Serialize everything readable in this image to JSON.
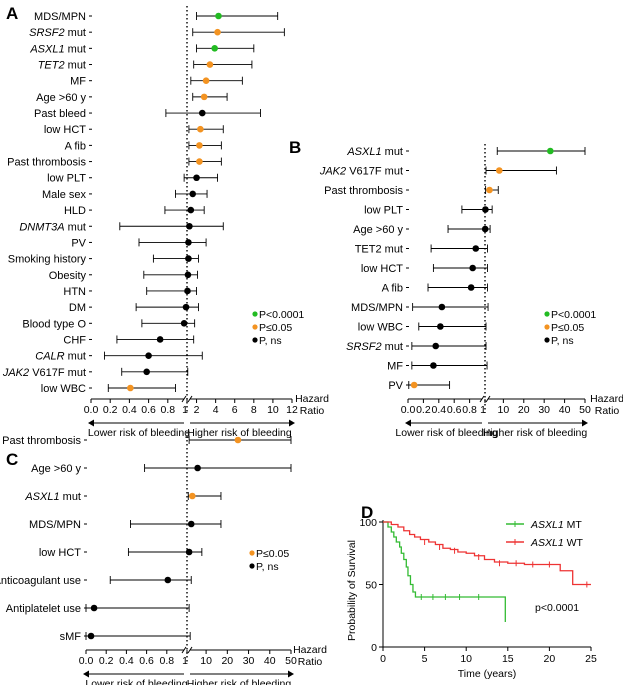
{
  "colors": {
    "p_very_sig": "#22bb22",
    "p_sig": "#f39321",
    "p_ns": "#000000",
    "mt_line": "#33bb33",
    "wt_line": "#ee3333"
  },
  "chart_data": [
    {
      "panel": "A",
      "type": "forest",
      "break_value": 1,
      "left_ticks": [
        "0.0",
        "0.2",
        "0.4",
        "0.6",
        "0.8",
        "1"
      ],
      "right_ticks": [
        "2",
        "4",
        "6",
        "8",
        "10",
        "12"
      ],
      "right_range": [
        1,
        12
      ],
      "axis_label": "Hazard Ratio",
      "axis_label_lines": [
        "Hazard",
        "Ratio"
      ],
      "lower_label": "Lower risk of bleeding",
      "higher_label": "Higher risk of bleeding",
      "legend": [
        "P<0.0001",
        "P≤0.05",
        "P, ns"
      ],
      "rows": [
        {
          "label": "MDS/MPN",
          "italic": false,
          "sig": 2,
          "est": 4.3,
          "lo": 2.0,
          "hi": 10.5
        },
        {
          "label": "SRSF2 mut",
          "italic": true,
          "sig": 1,
          "est": 4.2,
          "lo": 1.6,
          "hi": 11.2
        },
        {
          "label": "ASXL1 mut",
          "italic": true,
          "sig": 2,
          "est": 3.9,
          "lo": 2.0,
          "hi": 8.0
        },
        {
          "label": "TET2 mut",
          "italic": true,
          "sig": 1,
          "est": 3.4,
          "lo": 1.7,
          "hi": 7.8
        },
        {
          "label": "MF",
          "italic": false,
          "sig": 1,
          "est": 3.0,
          "lo": 1.4,
          "hi": 6.8
        },
        {
          "label": "Age >60 y",
          "italic": false,
          "sig": 1,
          "est": 2.8,
          "lo": 1.6,
          "hi": 5.2
        },
        {
          "label": "Past bleed",
          "italic": false,
          "sig": 0,
          "est": 2.6,
          "lo": 0.78,
          "hi": 8.7
        },
        {
          "label": "low HCT",
          "italic": false,
          "sig": 1,
          "est": 2.4,
          "lo": 1.2,
          "hi": 4.8
        },
        {
          "label": "A fib",
          "italic": false,
          "sig": 1,
          "est": 2.3,
          "lo": 1.2,
          "hi": 4.6
        },
        {
          "label": "Past thrombosis",
          "italic": false,
          "sig": 1,
          "est": 2.3,
          "lo": 1.2,
          "hi": 4.6
        },
        {
          "label": "low PLT",
          "italic": false,
          "sig": 0,
          "est": 2.0,
          "lo": 0.97,
          "hi": 4.2
        },
        {
          "label": "Male sex",
          "italic": false,
          "sig": 0,
          "est": 1.6,
          "lo": 0.88,
          "hi": 3.1
        },
        {
          "label": "HLD",
          "italic": false,
          "sig": 0,
          "est": 1.4,
          "lo": 0.77,
          "hi": 2.8
        },
        {
          "label": "DNMT3A mut",
          "italic": true,
          "sig": 0,
          "est": 1.25,
          "lo": 0.3,
          "hi": 4.8
        },
        {
          "label": "PV",
          "italic": false,
          "sig": 0,
          "est": 1.15,
          "lo": 0.5,
          "hi": 3.0
        },
        {
          "label": "Smoking history",
          "italic": false,
          "sig": 0,
          "est": 1.15,
          "lo": 0.65,
          "hi": 2.2
        },
        {
          "label": "Obesity",
          "italic": false,
          "sig": 0,
          "est": 1.1,
          "lo": 0.55,
          "hi": 2.1
        },
        {
          "label": "HTN",
          "italic": false,
          "sig": 0,
          "est": 1.05,
          "lo": 0.58,
          "hi": 2.0
        },
        {
          "label": "DM",
          "italic": false,
          "sig": 0,
          "est": 0.99,
          "lo": 0.47,
          "hi": 2.2
        },
        {
          "label": "Blood type O",
          "italic": false,
          "sig": 0,
          "est": 0.97,
          "lo": 0.53,
          "hi": 1.8
        },
        {
          "label": "CHF",
          "italic": false,
          "sig": 0,
          "est": 0.72,
          "lo": 0.27,
          "hi": 1.7
        },
        {
          "label": "CALR mut",
          "italic": true,
          "sig": 0,
          "est": 0.6,
          "lo": 0.14,
          "hi": 2.6
        },
        {
          "label": "JAK2 V617F mut",
          "italic": false,
          "sig": 0,
          "est": 0.58,
          "lo": 0.32,
          "hi": 1.08
        },
        {
          "label": "low WBC",
          "italic": false,
          "sig": 1,
          "est": 0.41,
          "lo": 0.18,
          "hi": 0.88
        }
      ]
    },
    {
      "panel": "B",
      "type": "forest",
      "break_value": 1,
      "left_ticks": [
        "0.0",
        "0.2",
        "0.4",
        "0.6",
        "0.8",
        "1"
      ],
      "right_ticks": [
        "10",
        "20",
        "30",
        "40",
        "50"
      ],
      "right_range": [
        1,
        50
      ],
      "axis_label": "Hazard Ratio",
      "axis_label_lines": [
        "Hazard",
        "Ratio"
      ],
      "lower_label": "Lower risk of bleeding",
      "higher_label": "Higher risk of bleeding",
      "legend": [
        "P<0.0001",
        "P≤0.05",
        "P, ns"
      ],
      "rows": [
        {
          "label": "ASXL1 mut",
          "italic": true,
          "sig": 2,
          "est": 33,
          "lo": 7,
          "hi": 50
        },
        {
          "label": "JAK2 V617F mut",
          "italic": false,
          "sig": 1,
          "est": 8,
          "lo": 1.5,
          "hi": 36
        },
        {
          "label": "Past thrombosis",
          "italic": false,
          "sig": 1,
          "est": 3.2,
          "lo": 1.3,
          "hi": 7.5
        },
        {
          "label": "low PLT",
          "italic": false,
          "sig": 0,
          "est": 1.2,
          "lo": 0.7,
          "hi": 4.5
        },
        {
          "label": "Age >60 y",
          "italic": false,
          "sig": 0,
          "est": 1.1,
          "lo": 0.52,
          "hi": 3.5
        },
        {
          "label": "TET2 mut",
          "italic": false,
          "sig": 0,
          "est": 0.88,
          "lo": 0.3,
          "hi": 2.2
        },
        {
          "label": "low HCT",
          "italic": false,
          "sig": 0,
          "est": 0.84,
          "lo": 0.33,
          "hi": 2.2
        },
        {
          "label": "A fib",
          "italic": false,
          "sig": 0,
          "est": 0.82,
          "lo": 0.26,
          "hi": 2.2
        },
        {
          "label": "MDS/MPN",
          "italic": false,
          "sig": 0,
          "est": 0.44,
          "lo": 0.06,
          "hi": 2.5
        },
        {
          "label": "low WBC",
          "italic": false,
          "sig": 0,
          "est": 0.42,
          "lo": 0.14,
          "hi": 1.5
        },
        {
          "label": "SRSF2 mut",
          "italic": true,
          "sig": 0,
          "est": 0.36,
          "lo": 0.05,
          "hi": 1.5
        },
        {
          "label": "MF",
          "italic": false,
          "sig": 0,
          "est": 0.33,
          "lo": 0.05,
          "hi": 2.0
        },
        {
          "label": "PV",
          "italic": false,
          "sig": 1,
          "est": 0.08,
          "lo": 0.01,
          "hi": 0.54
        }
      ]
    },
    {
      "panel": "C",
      "type": "forest",
      "break_value": 1,
      "left_ticks": [
        "0.0",
        "0.2",
        "0.4",
        "0.6",
        "0.8",
        "1"
      ],
      "right_ticks": [
        "10",
        "20",
        "30",
        "40",
        "50"
      ],
      "right_range": [
        1,
        50
      ],
      "axis_label": "Hazard Ratio",
      "axis_label_lines": [
        "Hazard",
        "Ratio"
      ],
      "lower_label": "Lower risk of bleeding",
      "higher_label": "Higher risk of bleeding",
      "legend": [
        "P≤0.05",
        "P, ns"
      ],
      "rows": [
        {
          "label": "Past thrombosis",
          "italic": false,
          "sig": 1,
          "est": 25,
          "lo": 2,
          "hi": 50
        },
        {
          "label": "Age >60 y",
          "italic": false,
          "sig": 0,
          "est": 6,
          "lo": 0.58,
          "hi": 50
        },
        {
          "label": "ASXL1 mut",
          "italic": true,
          "sig": 1,
          "est": 3.5,
          "lo": 1.6,
          "hi": 17
        },
        {
          "label": "MDS/MPN",
          "italic": false,
          "sig": 0,
          "est": 3,
          "lo": 0.44,
          "hi": 17
        },
        {
          "label": "low HCT",
          "italic": false,
          "sig": 0,
          "est": 2,
          "lo": 0.42,
          "hi": 8
        },
        {
          "label": "Anticoagulant use",
          "italic": false,
          "sig": 0,
          "est": 0.81,
          "lo": 0.24,
          "hi": 3
        },
        {
          "label": "Antiplatelet use",
          "italic": false,
          "sig": 0,
          "est": 0.08,
          "lo": 0.0,
          "hi": 2
        },
        {
          "label": "sMF",
          "italic": false,
          "sig": 0,
          "est": 0.05,
          "lo": 0.0,
          "hi": 2.5
        }
      ]
    },
    {
      "panel": "D",
      "type": "line",
      "ylabel": "Probability of Survival",
      "xlabel": "Time (years)",
      "x_ticks": [
        "0",
        "5",
        "10",
        "15",
        "20",
        "25"
      ],
      "y_ticks": [
        "0",
        "50",
        "100"
      ],
      "xlim": [
        0,
        25
      ],
      "ylim": [
        0,
        100
      ],
      "pvalue": "p<0.0001",
      "series": [
        {
          "name": "ASXL1 MT",
          "color_key": "mt_line",
          "x": [
            0,
            0.6,
            1.0,
            1.3,
            1.6,
            2.0,
            2.2,
            2.5,
            2.8,
            3.0,
            3.3,
            3.6,
            3.9,
            14.7,
            14.7
          ],
          "y": [
            100,
            96,
            92,
            88,
            84,
            80,
            75,
            70,
            64,
            57,
            50,
            44,
            40,
            40,
            20
          ]
        },
        {
          "name": "ASXL1 WT",
          "color_key": "wt_line",
          "x": [
            0,
            1,
            1.8,
            2.5,
            3.2,
            3.8,
            4.5,
            5.5,
            6.3,
            7.2,
            8.1,
            9,
            10,
            11,
            12.2,
            13.4,
            15,
            17,
            21.3,
            21.3,
            22.8,
            22.8,
            23.5,
            25
          ],
          "y": [
            100,
            98,
            96,
            93,
            90,
            88,
            86,
            84,
            82,
            79,
            78,
            76,
            75,
            73,
            70,
            68,
            67,
            66,
            66,
            61,
            61,
            50,
            50,
            50
          ]
        }
      ]
    }
  ],
  "panel_letters": [
    "A",
    "B",
    "C",
    "D"
  ]
}
